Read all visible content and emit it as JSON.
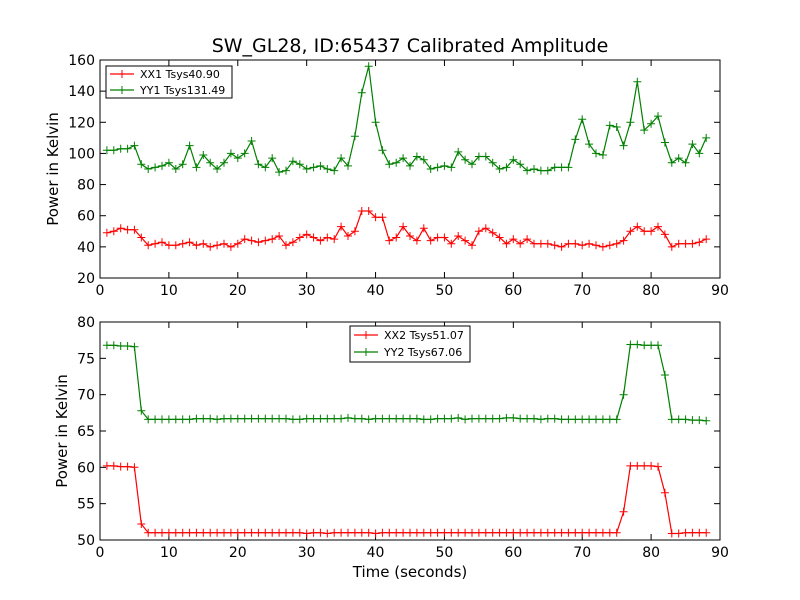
{
  "figure": {
    "title": "SW_GL28, ID:65437 Calibrated Amplitude"
  },
  "chart_data": [
    {
      "type": "line",
      "title": "SW_GL28, ID:65437 Calibrated Amplitude",
      "xlabel": "",
      "ylabel": "Power in Kelvin",
      "xlim": [
        0,
        90
      ],
      "ylim": [
        20,
        160
      ],
      "xticks": [
        0,
        10,
        20,
        30,
        40,
        50,
        60,
        70,
        80,
        90
      ],
      "yticks": [
        20,
        40,
        60,
        80,
        100,
        120,
        140,
        160
      ],
      "legend_position": "top-left",
      "x": [
        1,
        2,
        3,
        4,
        5,
        6,
        7,
        8,
        9,
        10,
        11,
        12,
        13,
        14,
        15,
        16,
        17,
        18,
        19,
        20,
        21,
        22,
        23,
        24,
        25,
        26,
        27,
        28,
        29,
        30,
        31,
        32,
        33,
        34,
        35,
        36,
        37,
        38,
        39,
        40,
        41,
        42,
        43,
        44,
        45,
        46,
        47,
        48,
        49,
        50,
        51,
        52,
        53,
        54,
        55,
        56,
        57,
        58,
        59,
        60,
        61,
        62,
        63,
        64,
        65,
        66,
        67,
        68,
        69,
        70,
        71,
        72,
        73,
        74,
        75,
        76,
        77,
        78,
        79,
        80,
        81,
        82,
        83,
        84,
        85,
        86,
        87,
        88
      ],
      "series": [
        {
          "name": "XX1 Tsys40.90",
          "color": "#ff0000",
          "values": [
            49,
            50,
            52,
            51,
            51,
            46,
            41,
            42,
            43,
            41,
            41,
            42,
            43,
            41,
            42,
            40,
            41,
            42,
            40,
            42,
            45,
            44,
            43,
            44,
            45,
            47,
            41,
            43,
            46,
            48,
            46,
            44,
            46,
            45,
            53,
            47,
            50,
            63,
            63,
            59,
            59,
            44,
            46,
            53,
            47,
            44,
            52,
            44,
            46,
            46,
            42,
            47,
            44,
            41,
            50,
            52,
            49,
            46,
            42,
            45,
            42,
            45,
            42,
            42,
            42,
            41,
            40,
            42,
            42,
            41,
            42,
            41,
            40,
            41,
            42,
            44,
            50,
            53,
            50,
            50,
            53,
            48,
            40,
            42,
            42,
            42,
            43,
            45
          ]
        },
        {
          "name": "YY1 Tsys131.49",
          "color": "#008000",
          "values": [
            102,
            102,
            103,
            103,
            105,
            93,
            90,
            91,
            92,
            94,
            90,
            93,
            105,
            91,
            99,
            94,
            90,
            94,
            100,
            97,
            100,
            108,
            93,
            91,
            97,
            88,
            89,
            95,
            93,
            90,
            91,
            92,
            90,
            89,
            97,
            92,
            111,
            139,
            156,
            120,
            102,
            93,
            94,
            97,
            92,
            98,
            96,
            90,
            91,
            92,
            91,
            101,
            96,
            93,
            98,
            98,
            94,
            90,
            91,
            96,
            93,
            89,
            90,
            89,
            89,
            91,
            91,
            91,
            109,
            122,
            106,
            100,
            99,
            118,
            117,
            105,
            120,
            146,
            115,
            119,
            124,
            107,
            94,
            97,
            94,
            106,
            100,
            110
          ]
        }
      ]
    },
    {
      "type": "line",
      "title": "",
      "xlabel": "Time (seconds)",
      "ylabel": "Power in Kelvin",
      "xlim": [
        0,
        90
      ],
      "ylim": [
        50,
        80
      ],
      "xticks": [
        0,
        10,
        20,
        30,
        40,
        50,
        60,
        70,
        80,
        90
      ],
      "yticks": [
        50,
        55,
        60,
        65,
        70,
        75,
        80
      ],
      "legend_position": "upper-center",
      "x": [
        1,
        2,
        3,
        4,
        5,
        6,
        7,
        8,
        9,
        10,
        11,
        12,
        13,
        14,
        15,
        16,
        17,
        18,
        19,
        20,
        21,
        22,
        23,
        24,
        25,
        26,
        27,
        28,
        29,
        30,
        31,
        32,
        33,
        34,
        35,
        36,
        37,
        38,
        39,
        40,
        41,
        42,
        43,
        44,
        45,
        46,
        47,
        48,
        49,
        50,
        51,
        52,
        53,
        54,
        55,
        56,
        57,
        58,
        59,
        60,
        61,
        62,
        63,
        64,
        65,
        66,
        67,
        68,
        69,
        70,
        71,
        72,
        73,
        74,
        75,
        76,
        77,
        78,
        79,
        80,
        81,
        82,
        83,
        84,
        85,
        86,
        87,
        88
      ],
      "series": [
        {
          "name": "XX2 Tsys51.07",
          "color": "#ff0000",
          "values": [
            60.2,
            60.2,
            60.1,
            60.1,
            60.0,
            52.2,
            51.0,
            51.0,
            51.0,
            51.0,
            51.0,
            51.0,
            51.0,
            51.0,
            51.0,
            51.0,
            51.0,
            51.0,
            51.0,
            51.0,
            51.0,
            51.0,
            51.0,
            51.0,
            51.0,
            51.0,
            51.0,
            51.0,
            51.0,
            50.9,
            51.0,
            51.0,
            50.9,
            51.0,
            51.0,
            51.0,
            51.0,
            51.0,
            51.0,
            50.9,
            51.0,
            51.0,
            51.0,
            51.0,
            51.0,
            51.0,
            51.0,
            51.0,
            51.0,
            51.0,
            51.0,
            51.0,
            51.0,
            51.0,
            51.0,
            51.0,
            51.0,
            51.0,
            51.0,
            51.0,
            51.0,
            51.0,
            51.0,
            51.0,
            51.0,
            51.0,
            51.0,
            51.0,
            51.0,
            51.0,
            51.0,
            51.0,
            51.0,
            51.0,
            51.0,
            53.9,
            60.2,
            60.2,
            60.2,
            60.2,
            60.1,
            56.5,
            50.9,
            50.9,
            51.0,
            51.0,
            51.0,
            51.0
          ]
        },
        {
          "name": "YY2 Tsys67.06",
          "color": "#008000",
          "values": [
            76.8,
            76.8,
            76.7,
            76.7,
            76.6,
            67.8,
            66.6,
            66.6,
            66.6,
            66.6,
            66.6,
            66.6,
            66.6,
            66.7,
            66.7,
            66.7,
            66.6,
            66.7,
            66.7,
            66.7,
            66.7,
            66.7,
            66.7,
            66.7,
            66.7,
            66.7,
            66.7,
            66.6,
            66.6,
            66.7,
            66.7,
            66.7,
            66.7,
            66.7,
            66.7,
            66.8,
            66.7,
            66.7,
            66.6,
            66.7,
            66.7,
            66.7,
            66.7,
            66.7,
            66.7,
            66.7,
            66.6,
            66.6,
            66.7,
            66.7,
            66.7,
            66.8,
            66.6,
            66.7,
            66.7,
            66.7,
            66.7,
            66.7,
            66.8,
            66.8,
            66.7,
            66.7,
            66.7,
            66.6,
            66.7,
            66.7,
            66.6,
            66.6,
            66.6,
            66.6,
            66.6,
            66.6,
            66.6,
            66.6,
            66.6,
            70.0,
            76.9,
            76.9,
            76.8,
            76.8,
            76.8,
            72.7,
            66.6,
            66.6,
            66.6,
            66.5,
            66.5,
            66.4
          ]
        }
      ]
    }
  ]
}
